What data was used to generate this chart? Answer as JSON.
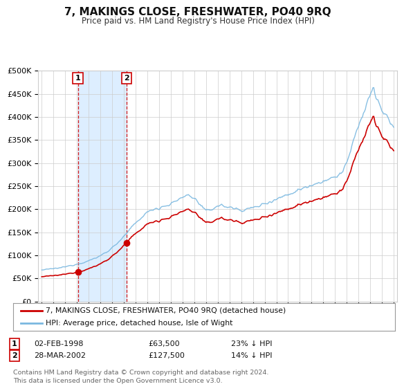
{
  "title": "7, MAKINGS CLOSE, FRESHWATER, PO40 9RQ",
  "subtitle": "Price paid vs. HM Land Registry's House Price Index (HPI)",
  "legend_line1": "7, MAKINGS CLOSE, FRESHWATER, PO40 9RQ (detached house)",
  "legend_line2": "HPI: Average price, detached house, Isle of Wight",
  "footnote": "Contains HM Land Registry data © Crown copyright and database right 2024.\nThis data is licensed under the Open Government Licence v3.0.",
  "sale1_date": "02-FEB-1998",
  "sale1_price": 63500,
  "sale1_label": "23% ↓ HPI",
  "sale2_date": "28-MAR-2002",
  "sale2_price": 127500,
  "sale2_label": "14% ↓ HPI",
  "sale1_year": 1998.083,
  "sale2_year": 2002.25,
  "hpi_color": "#7ab8e0",
  "price_color": "#cc0000",
  "background_color": "#ffffff",
  "grid_color": "#cccccc",
  "highlight_color": "#ddeeff",
  "ylim": [
    0,
    500000
  ],
  "yticks": [
    0,
    50000,
    100000,
    150000,
    200000,
    250000,
    300000,
    350000,
    400000,
    450000,
    500000
  ],
  "xlim_start": 1994.7,
  "xlim_end": 2025.3,
  "hpi_anchors": {
    "1995.0": 68000,
    "1995.5": 69500,
    "1996.0": 71000,
    "1996.5": 72500,
    "1997.0": 75000,
    "1997.5": 78000,
    "1998.0": 81000,
    "1998.5": 84000,
    "1999.0": 88000,
    "1999.5": 93000,
    "2000.0": 99000,
    "2000.5": 107000,
    "2001.0": 116000,
    "2001.5": 128000,
    "2002.0": 140000,
    "2002.5": 155000,
    "2003.0": 170000,
    "2003.5": 182000,
    "2004.0": 193000,
    "2004.5": 200000,
    "2005.0": 203000,
    "2005.5": 207000,
    "2006.0": 211000,
    "2006.5": 218000,
    "2007.0": 226000,
    "2007.5": 231000,
    "2008.0": 224000,
    "2008.5": 210000,
    "2009.0": 195000,
    "2009.5": 200000,
    "2010.0": 208000,
    "2010.5": 207000,
    "2011.0": 204000,
    "2011.5": 201000,
    "2012.0": 198000,
    "2012.5": 200000,
    "2013.0": 203000,
    "2013.5": 207000,
    "2014.0": 212000,
    "2014.5": 217000,
    "2015.0": 222000,
    "2015.5": 227000,
    "2016.0": 232000,
    "2016.5": 237000,
    "2017.0": 243000,
    "2017.5": 248000,
    "2018.0": 253000,
    "2018.5": 257000,
    "2019.0": 261000,
    "2019.5": 265000,
    "2020.0": 268000,
    "2020.5": 278000,
    "2021.0": 300000,
    "2021.5": 340000,
    "2022.0": 380000,
    "2022.5": 415000,
    "2023.0": 450000,
    "2023.3": 462000,
    "2023.5": 440000,
    "2023.8": 425000,
    "2024.0": 415000,
    "2024.3": 405000,
    "2024.5": 395000,
    "2024.8": 385000,
    "2025.0": 375000
  }
}
